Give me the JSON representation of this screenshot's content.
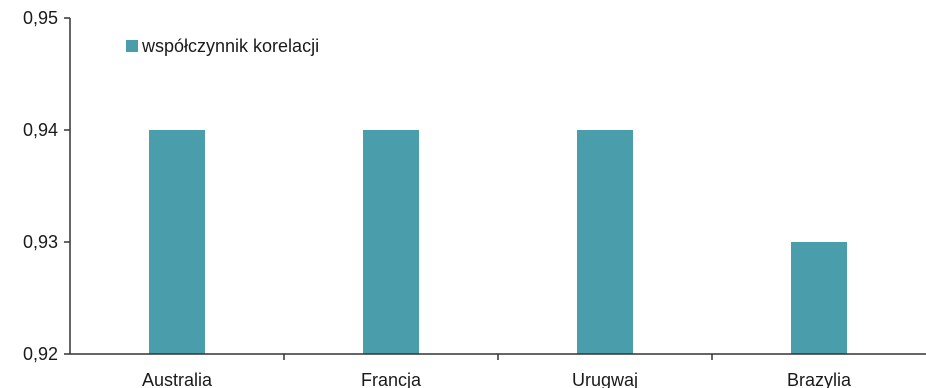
{
  "chart_data": {
    "type": "bar",
    "categories": [
      "Australia",
      "Francja",
      "Urugwaj",
      "Brazylia"
    ],
    "series": [
      {
        "name": "współczynnik korelacji",
        "values": [
          0.94,
          0.94,
          0.94,
          0.93
        ]
      }
    ],
    "ylim": [
      0.92,
      0.95
    ],
    "yticks": [
      "0,92",
      "0,93",
      "0,94",
      "0,95"
    ],
    "grid": false,
    "legend_position": "top-left",
    "colors": {
      "bar": "#4a9daa",
      "axis": "#333333",
      "text": "#1a1a1a"
    }
  }
}
